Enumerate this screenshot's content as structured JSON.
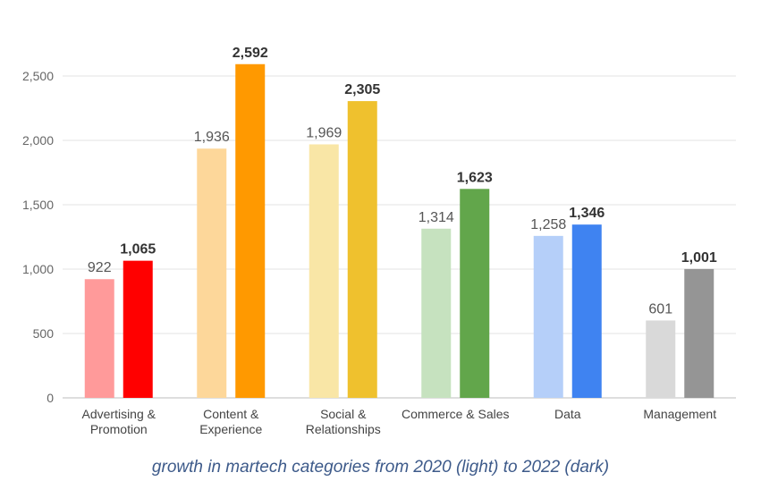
{
  "chart_data": {
    "type": "bar",
    "title": "",
    "xlabel": "",
    "ylabel": "",
    "ylim": [
      0,
      2500
    ],
    "yticks": [
      0,
      500,
      1000,
      1500,
      2000,
      2500
    ],
    "ytick_labels": [
      "0",
      "500",
      "1,000",
      "1,500",
      "2,000",
      "2,500"
    ],
    "grid": true,
    "categories": [
      [
        "Advertising &",
        "Promotion"
      ],
      [
        "Content &",
        "Experience"
      ],
      [
        "Social &",
        "Relationships"
      ],
      [
        "Commerce & Sales"
      ],
      [
        "Data"
      ],
      [
        "Management"
      ]
    ],
    "series": [
      {
        "name": "2020",
        "values": [
          922,
          1936,
          1969,
          1314,
          1258,
          601
        ],
        "labels": [
          "922",
          "1,936",
          "1,969",
          "1,314",
          "1,258",
          "601"
        ],
        "colors": [
          "#ff9a9a",
          "#fdd79a",
          "#f9e6a6",
          "#c6e2bf",
          "#b5cff9",
          "#d9d9d9"
        ]
      },
      {
        "name": "2022",
        "values": [
          1065,
          2592,
          2305,
          1623,
          1346,
          1001
        ],
        "labels": [
          "1,065",
          "2,592",
          "2,305",
          "1,623",
          "1,346",
          "1,001"
        ],
        "colors": [
          "#ff0000",
          "#ff9900",
          "#efc12e",
          "#62a64b",
          "#3f83f1",
          "#959595"
        ]
      }
    ],
    "caption": "growth in martech categories from 2020 (light) to 2022 (dark)"
  }
}
